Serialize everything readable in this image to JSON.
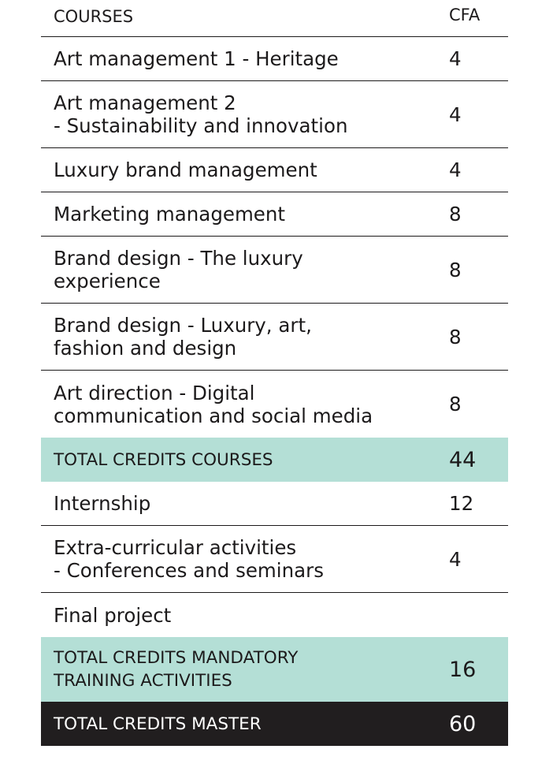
{
  "header": {
    "courses_label": "COURSES",
    "cfa_label": "CFA"
  },
  "rows": [
    {
      "name": "Art management 1 - Heritage",
      "cfa": "4"
    },
    {
      "name": "Art management 2\n- Sustainability and innovation",
      "cfa": "4"
    },
    {
      "name": "Luxury brand management",
      "cfa": "4"
    },
    {
      "name": "Marketing management",
      "cfa": "8"
    },
    {
      "name": "Brand design - The luxury\nexperience",
      "cfa": "8"
    },
    {
      "name": "Brand design - Luxury, art,\nfashion and design",
      "cfa": "8"
    },
    {
      "name": "Art direction - Digital\ncommunication and social media",
      "cfa": "8"
    }
  ],
  "total_courses": {
    "label": "TOTAL CREDITS COURSES",
    "cfa": "44"
  },
  "activities": [
    {
      "name": "Internship",
      "cfa": "12"
    },
    {
      "name": "Extra-curricular activities\n- Conferences and seminars",
      "cfa": "4"
    },
    {
      "name": "Final project",
      "cfa": ""
    }
  ],
  "total_mandatory": {
    "label": "TOTAL CREDITS MANDATORY\nTRAINING ACTIVITIES",
    "cfa": "16"
  },
  "total_master": {
    "label": "TOTAL CREDITS MASTER",
    "cfa": "60"
  },
  "colors": {
    "total_highlight": "#b4dfd6",
    "master_bg": "#211e1f",
    "text": "#1c1a1b"
  }
}
